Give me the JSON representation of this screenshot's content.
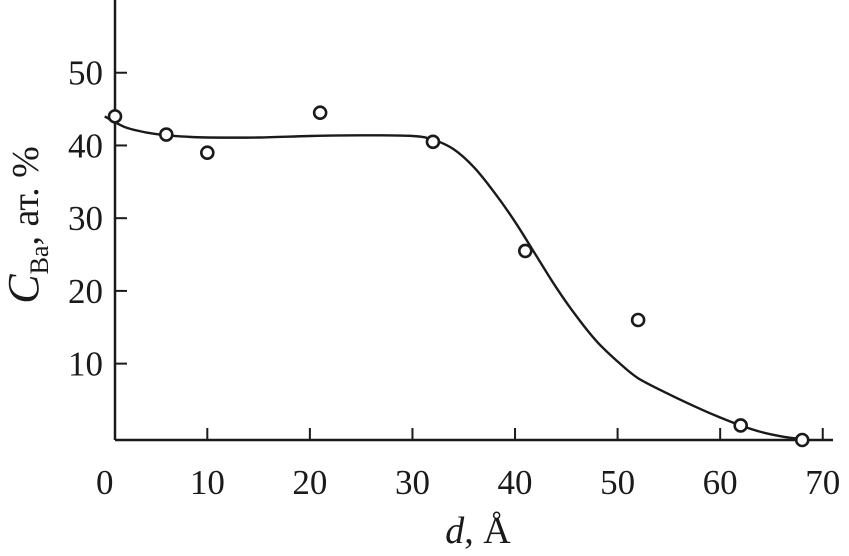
{
  "chart_data": {
    "type": "scatter",
    "x": [
      1,
      6,
      10,
      21,
      32,
      41,
      52,
      62,
      68
    ],
    "y": [
      44,
      41.5,
      39,
      44.5,
      40.5,
      25.5,
      16,
      1.5,
      -0.5
    ],
    "fit_curve": {
      "x": [
        0,
        2,
        4,
        6,
        8,
        10,
        15,
        20,
        25,
        30,
        32,
        34,
        36,
        38,
        40,
        42,
        44,
        46,
        48,
        50,
        52,
        55,
        58,
        60,
        62,
        64,
        66,
        68
      ],
      "y": [
        44,
        42.5,
        41.8,
        41.4,
        41.2,
        41.1,
        41.1,
        41.3,
        41.4,
        41.3,
        40.8,
        39.5,
        37,
        33.5,
        29.5,
        25,
        20.5,
        16.5,
        13,
        10.3,
        8,
        5.8,
        3.8,
        2.6,
        1.5,
        0.6,
        0,
        -0.4
      ]
    },
    "xlim": [
      1,
      71
    ],
    "ylim": [
      -0.5,
      60
    ],
    "x_ticks": [
      0,
      10,
      20,
      30,
      40,
      50,
      60,
      70
    ],
    "y_ticks": [
      10,
      20,
      30,
      40,
      50
    ],
    "xlabel": {
      "italic": "d",
      "rest": ", Å"
    },
    "ylabel": {
      "italic": "C",
      "sub": "Ba",
      "rest": ", ат. %"
    },
    "grid": false
  }
}
